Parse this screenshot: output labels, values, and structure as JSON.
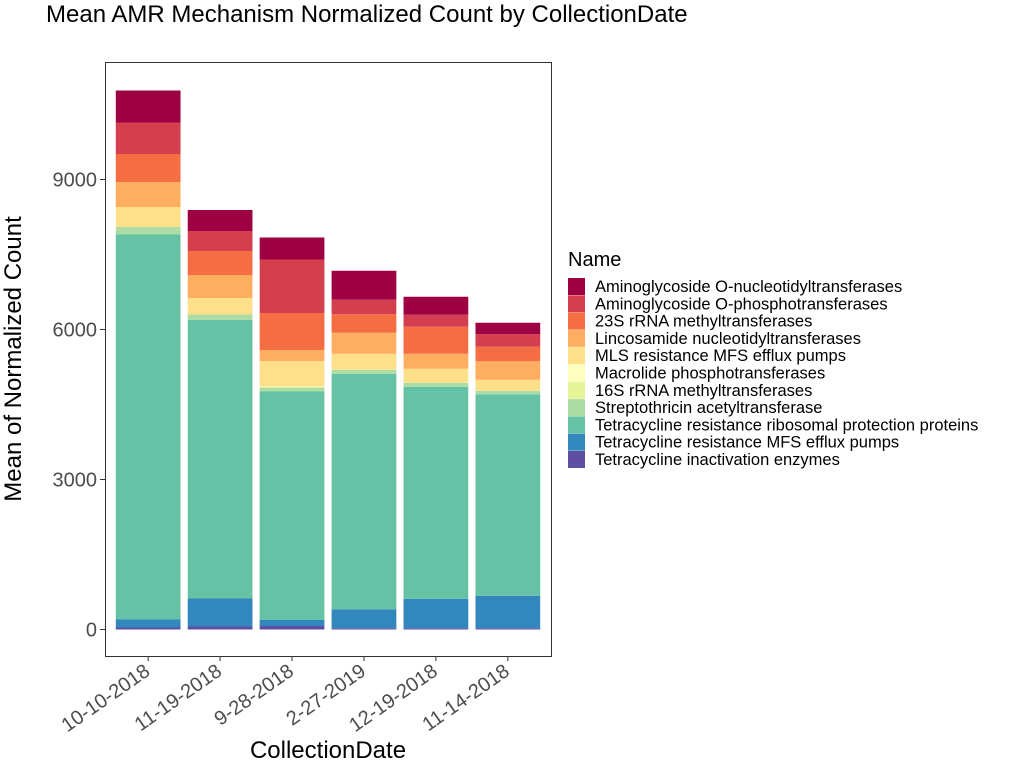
{
  "chart_data": {
    "type": "bar",
    "stacked": true,
    "title": "Mean AMR Mechanism Normalized Count by CollectionDate",
    "xlabel": "CollectionDate",
    "ylabel": "Mean of Normalized Count",
    "ylim": [
      -530,
      11350
    ],
    "yticks": [
      0,
      3000,
      6000,
      9000
    ],
    "ytick_labels": [
      "0",
      "3000",
      "6000",
      "9000"
    ],
    "grid": false,
    "legend_title": "Name",
    "legend_position": "right",
    "categories": [
      "10-10-2018",
      "11-19-2018",
      "9-28-2018",
      "2-27-2019",
      "12-19-2018",
      "11-14-2018"
    ],
    "series": [
      {
        "name": "Tetracycline inactivation enzymes",
        "color": "#5E4FA2",
        "values": [
          40,
          60,
          70,
          25,
          25,
          25
        ]
      },
      {
        "name": "Tetracycline resistance MFS efflux pumps",
        "color": "#3288BD",
        "values": [
          160,
          560,
          120,
          380,
          590,
          650
        ]
      },
      {
        "name": "Tetracycline resistance ribosomal protection proteins",
        "color": "#66C2A5",
        "values": [
          7700,
          5570,
          4570,
          4710,
          4240,
          4030
        ]
      },
      {
        "name": "Streptothricin acetyltransferase",
        "color": "#ABDDA4",
        "values": [
          150,
          110,
          80,
          80,
          80,
          70
        ]
      },
      {
        "name": "16S rRNA methyltransferases",
        "color": "#E6F598",
        "values": [
          0,
          0,
          0,
          0,
          0,
          0
        ]
      },
      {
        "name": "Macrolide phosphotransferases",
        "color": "#FFFFBF",
        "values": [
          0,
          0,
          20,
          0,
          0,
          0
        ]
      },
      {
        "name": "MLS resistance MFS efflux pumps",
        "color": "#FEE08B",
        "values": [
          400,
          330,
          510,
          320,
          280,
          220
        ]
      },
      {
        "name": "Lincosamide nucleotidyltransferases",
        "color": "#FDAE61",
        "values": [
          500,
          460,
          220,
          420,
          300,
          370
        ]
      },
      {
        "name": "23S rRNA methyltransferases",
        "color": "#F46D43",
        "values": [
          560,
          480,
          740,
          370,
          540,
          290
        ]
      },
      {
        "name": "Aminoglycoside O-phosphotransferases",
        "color": "#D53E4F",
        "values": [
          630,
          400,
          1070,
          290,
          240,
          250
        ]
      },
      {
        "name": "Aminoglycoside O-nucleotidyltransferases",
        "color": "#9E0142",
        "values": [
          640,
          420,
          440,
          580,
          360,
          230
        ]
      }
    ]
  }
}
